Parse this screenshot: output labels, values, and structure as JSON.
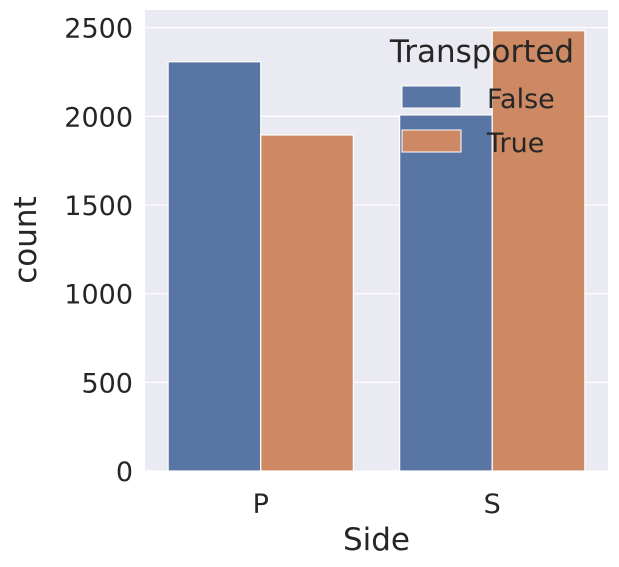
{
  "chart_data": {
    "type": "bar",
    "xlabel": "Side",
    "ylabel": "count",
    "categories": [
      "P",
      "S"
    ],
    "series": [
      {
        "name": "False",
        "values": [
          2308,
          2008
        ]
      },
      {
        "name": "True",
        "values": [
          1895,
          2483
        ]
      }
    ],
    "ylim": [
      0,
      2600
    ],
    "yticks": [
      0,
      500,
      1000,
      1500,
      2000,
      2500
    ],
    "grid": true,
    "legend": {
      "title": "Transported",
      "placement": "upper right"
    },
    "colors": {
      "plot_background": "#eaeaf2",
      "grid": "#ffffff",
      "series": [
        "#5875a4",
        "#cc8963"
      ]
    }
  }
}
